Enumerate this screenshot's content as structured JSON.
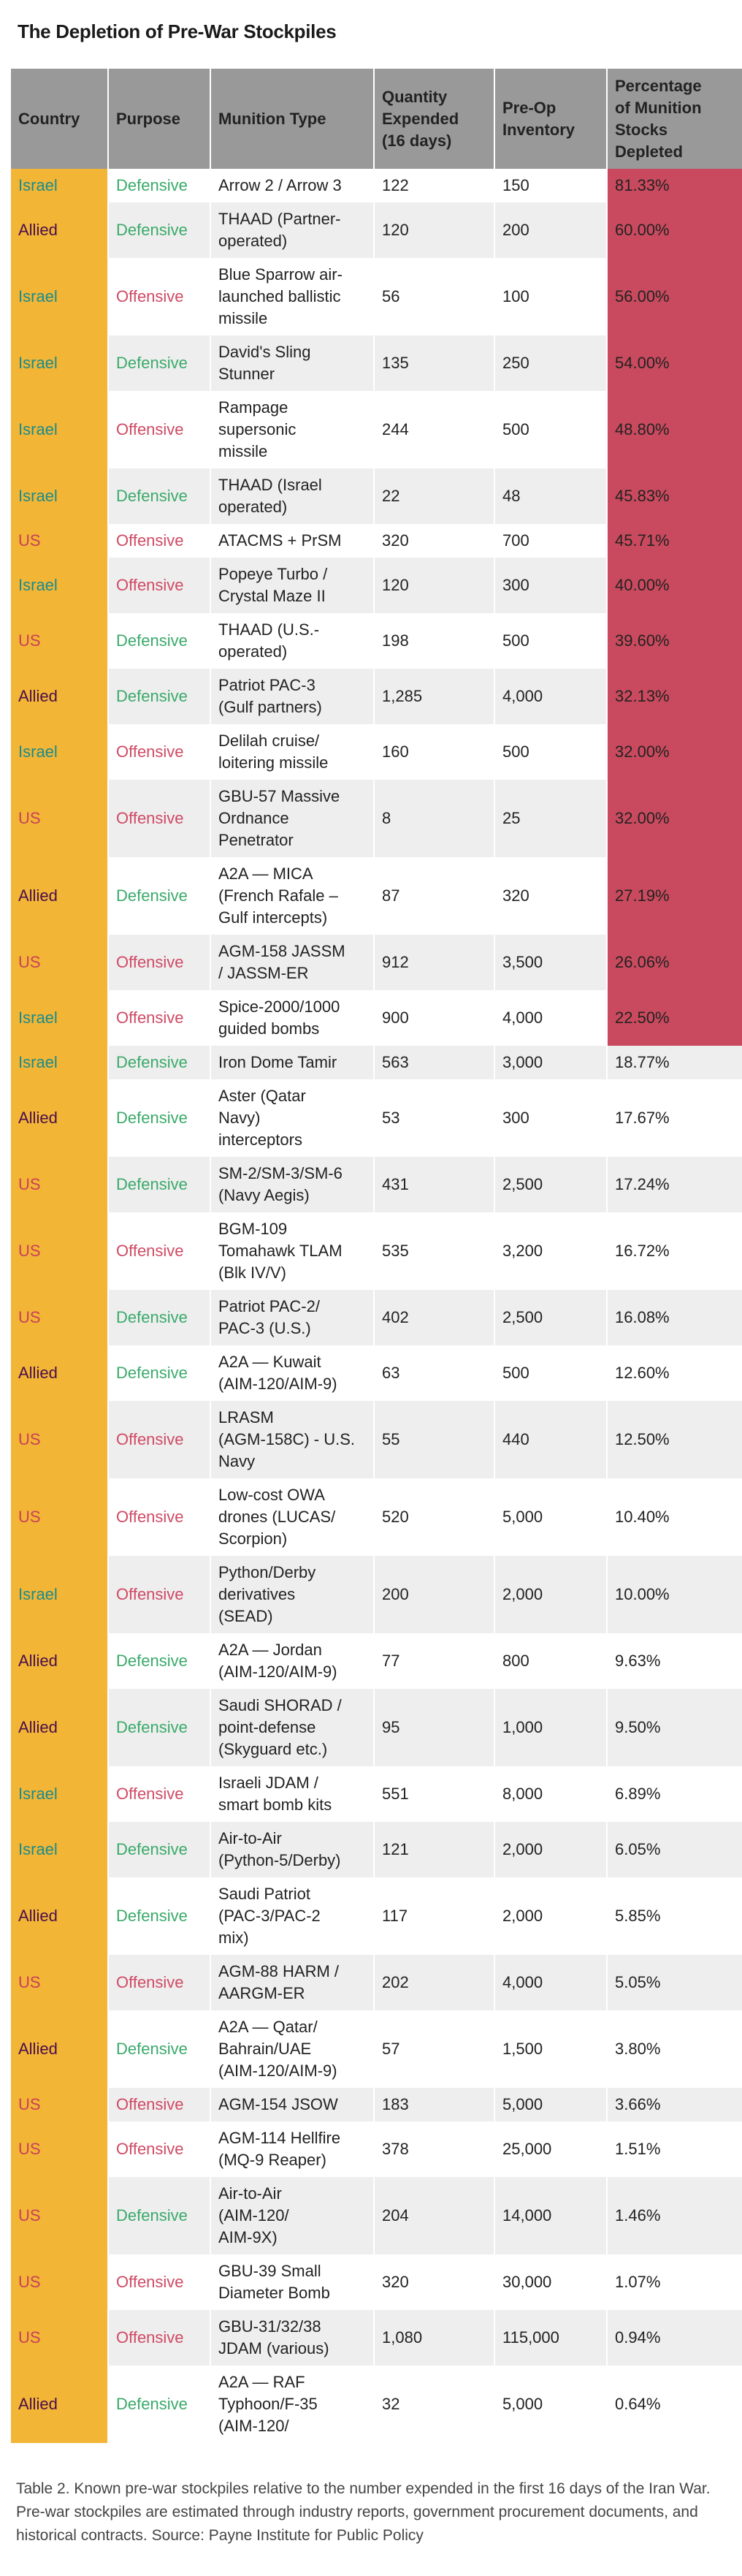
{
  "title": "The Depletion of Pre-War Stockpiles",
  "colors": {
    "country_bg": "#f2b535",
    "header_bg": "#999999",
    "high_depletion_bg": "#c94a5e",
    "Israel": "#1a8c8c",
    "Allied": "#4a0e4e",
    "US": "#c8405a",
    "Defensive": "#3aaa6a",
    "Offensive": "#d04a64"
  },
  "headers": [
    "Country",
    "Purpose",
    "Munition Type",
    "Quantity\nExpended\n(16 days)",
    "Pre-Op\nInventory",
    "Percentage\nof Munition\nStocks\nDepleted"
  ],
  "rows": [
    {
      "country": "Israel",
      "purpose": "Defensive",
      "munition": "Arrow 2 / Arrow 3",
      "expended": "122",
      "inventory": "150",
      "pct": "81.33%",
      "high": true
    },
    {
      "country": "Allied",
      "purpose": "Defensive",
      "munition": "THAAD (Partner-\noperated)",
      "expended": "120",
      "inventory": "200",
      "pct": "60.00%",
      "high": true
    },
    {
      "country": "Israel",
      "purpose": "Offensive",
      "munition": "Blue Sparrow air-\nlaunched ballistic\nmissile",
      "expended": "56",
      "inventory": "100",
      "pct": "56.00%",
      "high": true
    },
    {
      "country": "Israel",
      "purpose": "Defensive",
      "munition": "David's Sling\nStunner",
      "expended": "135",
      "inventory": "250",
      "pct": "54.00%",
      "high": true
    },
    {
      "country": "Israel",
      "purpose": "Offensive",
      "munition": "Rampage\nsupersonic\nmissile",
      "expended": "244",
      "inventory": "500",
      "pct": "48.80%",
      "high": true
    },
    {
      "country": "Israel",
      "purpose": "Defensive",
      "munition": "THAAD (Israel\noperated)",
      "expended": "22",
      "inventory": "48",
      "pct": "45.83%",
      "high": true
    },
    {
      "country": "US",
      "purpose": "Offensive",
      "munition": "ATACMS + PrSM",
      "expended": "320",
      "inventory": "700",
      "pct": "45.71%",
      "high": true
    },
    {
      "country": "Israel",
      "purpose": "Offensive",
      "munition": "Popeye Turbo /\nCrystal Maze II",
      "expended": "120",
      "inventory": "300",
      "pct": "40.00%",
      "high": true
    },
    {
      "country": "US",
      "purpose": "Defensive",
      "munition": "THAAD (U.S.-\noperated)",
      "expended": "198",
      "inventory": "500",
      "pct": "39.60%",
      "high": true
    },
    {
      "country": "Allied",
      "purpose": "Defensive",
      "munition": "Patriot PAC-3\n(Gulf partners)",
      "expended": "1,285",
      "inventory": "4,000",
      "pct": "32.13%",
      "high": true
    },
    {
      "country": "Israel",
      "purpose": "Offensive",
      "munition": "Delilah cruise/\nloitering missile",
      "expended": "160",
      "inventory": "500",
      "pct": "32.00%",
      "high": true
    },
    {
      "country": "US",
      "purpose": "Offensive",
      "munition": "GBU-57 Massive\nOrdnance\nPenetrator",
      "expended": "8",
      "inventory": "25",
      "pct": "32.00%",
      "high": true
    },
    {
      "country": "Allied",
      "purpose": "Defensive",
      "munition": "A2A — MICA\n(French Rafale –\nGulf intercepts)",
      "expended": "87",
      "inventory": "320",
      "pct": "27.19%",
      "high": true
    },
    {
      "country": "US",
      "purpose": "Offensive",
      "munition": "AGM-158 JASSM\n/ JASSM-ER",
      "expended": "912",
      "inventory": "3,500",
      "pct": "26.06%",
      "high": true
    },
    {
      "country": "Israel",
      "purpose": "Offensive",
      "munition": "Spice-2000/1000\nguided bombs",
      "expended": "900",
      "inventory": "4,000",
      "pct": "22.50%",
      "high": true
    },
    {
      "country": "Israel",
      "purpose": "Defensive",
      "munition": "Iron Dome Tamir",
      "expended": "563",
      "inventory": "3,000",
      "pct": "18.77%",
      "high": false
    },
    {
      "country": "Allied",
      "purpose": "Defensive",
      "munition": "Aster (Qatar\nNavy)\ninterceptors",
      "expended": "53",
      "inventory": "300",
      "pct": "17.67%",
      "high": false
    },
    {
      "country": "US",
      "purpose": "Defensive",
      "munition": "SM-2/SM-3/SM-6\n(Navy Aegis)",
      "expended": "431",
      "inventory": "2,500",
      "pct": "17.24%",
      "high": false
    },
    {
      "country": "US",
      "purpose": "Offensive",
      "munition": "BGM-109\nTomahawk TLAM\n(Blk IV/V)",
      "expended": "535",
      "inventory": "3,200",
      "pct": "16.72%",
      "high": false
    },
    {
      "country": "US",
      "purpose": "Defensive",
      "munition": "Patriot PAC-2/\nPAC-3 (U.S.)",
      "expended": "402",
      "inventory": "2,500",
      "pct": "16.08%",
      "high": false
    },
    {
      "country": "Allied",
      "purpose": "Defensive",
      "munition": "A2A — Kuwait\n(AIM-120/AIM-9)",
      "expended": "63",
      "inventory": "500",
      "pct": "12.60%",
      "high": false
    },
    {
      "country": "US",
      "purpose": "Offensive",
      "munition": "LRASM\n(AGM-158C) - U.S.\nNavy",
      "expended": "55",
      "inventory": "440",
      "pct": "12.50%",
      "high": false
    },
    {
      "country": "US",
      "purpose": "Offensive",
      "munition": "Low-cost OWA\ndrones (LUCAS/\nScorpion)",
      "expended": "520",
      "inventory": "5,000",
      "pct": "10.40%",
      "high": false
    },
    {
      "country": "Israel",
      "purpose": "Offensive",
      "munition": "Python/Derby\nderivatives\n(SEAD)",
      "expended": "200",
      "inventory": "2,000",
      "pct": "10.00%",
      "high": false
    },
    {
      "country": "Allied",
      "purpose": "Defensive",
      "munition": "A2A — Jordan\n(AIM-120/AIM-9)",
      "expended": "77",
      "inventory": "800",
      "pct": "9.63%",
      "high": false
    },
    {
      "country": "Allied",
      "purpose": "Defensive",
      "munition": "Saudi SHORAD /\npoint-defense\n(Skyguard etc.)",
      "expended": "95",
      "inventory": "1,000",
      "pct": "9.50%",
      "high": false
    },
    {
      "country": "Israel",
      "purpose": "Offensive",
      "munition": "Israeli JDAM /\nsmart bomb kits",
      "expended": "551",
      "inventory": "8,000",
      "pct": "6.89%",
      "high": false
    },
    {
      "country": "Israel",
      "purpose": "Defensive",
      "munition": "Air-to-Air\n(Python-5/Derby)",
      "expended": "121",
      "inventory": "2,000",
      "pct": "6.05%",
      "high": false
    },
    {
      "country": "Allied",
      "purpose": "Defensive",
      "munition": "Saudi Patriot\n(PAC-3/PAC-2\nmix)",
      "expended": "117",
      "inventory": "2,000",
      "pct": "5.85%",
      "high": false
    },
    {
      "country": "US",
      "purpose": "Offensive",
      "munition": "AGM-88 HARM /\nAARGM-ER",
      "expended": "202",
      "inventory": "4,000",
      "pct": "5.05%",
      "high": false
    },
    {
      "country": "Allied",
      "purpose": "Defensive",
      "munition": "A2A — Qatar/\nBahrain/UAE\n(AIM-120/AIM-9)",
      "expended": "57",
      "inventory": "1,500",
      "pct": "3.80%",
      "high": false
    },
    {
      "country": "US",
      "purpose": "Offensive",
      "munition": "AGM-154 JSOW",
      "expended": "183",
      "inventory": "5,000",
      "pct": "3.66%",
      "high": false
    },
    {
      "country": "US",
      "purpose": "Offensive",
      "munition": "AGM-114 Hellfire\n(MQ-9 Reaper)",
      "expended": "378",
      "inventory": "25,000",
      "pct": "1.51%",
      "high": false
    },
    {
      "country": "US",
      "purpose": "Defensive",
      "munition": "Air-to-Air\n(AIM-120/\nAIM-9X)",
      "expended": "204",
      "inventory": "14,000",
      "pct": "1.46%",
      "high": false
    },
    {
      "country": "US",
      "purpose": "Offensive",
      "munition": "GBU-39 Small\nDiameter Bomb",
      "expended": "320",
      "inventory": "30,000",
      "pct": "1.07%",
      "high": false
    },
    {
      "country": "US",
      "purpose": "Offensive",
      "munition": "GBU-31/32/38\nJDAM (various)",
      "expended": "1,080",
      "inventory": "115,000",
      "pct": "0.94%",
      "high": false
    },
    {
      "country": "Allied",
      "purpose": "Defensive",
      "munition": "A2A — RAF\nTyphoon/F-35\n(AIM-120/",
      "expended": "32",
      "inventory": "5,000",
      "pct": "0.64%",
      "high": false
    }
  ],
  "caption": "Table 2. Known pre-war stockpiles relative to the number expended in the first 16 days of the Iran War. Pre-war stockpiles are estimated through industry reports, government procurement documents, and historical contracts. Source: Payne Institute for Public Policy"
}
